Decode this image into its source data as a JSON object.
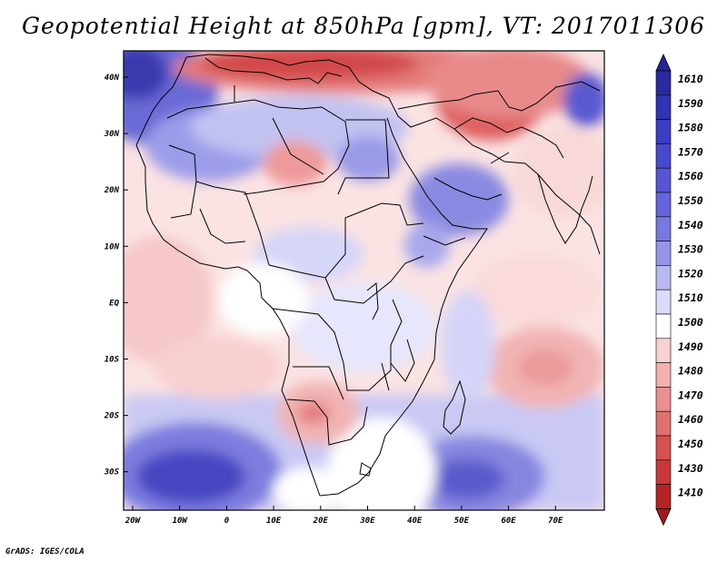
{
  "title": "Geopotential Height at 850hPa [gpm], VT: 2017011306",
  "credit": "GrADS: IGES/COLA",
  "lat_labels": [
    "40N",
    "30N",
    "20N",
    "10N",
    "EQ",
    "10S",
    "20S",
    "30S"
  ],
  "lon_labels": [
    "20W",
    "10W",
    "0",
    "10E",
    "20E",
    "30E",
    "40E",
    "50E",
    "60E",
    "70E"
  ],
  "colorbar": {
    "levels": [
      "1610",
      "1590",
      "1580",
      "1570",
      "1560",
      "1550",
      "1540",
      "1530",
      "1520",
      "1510",
      "1500",
      "1490",
      "1480",
      "1470",
      "1460",
      "1450",
      "1430",
      "1410"
    ],
    "colors": [
      "#2a2aa0",
      "#3232b4",
      "#3c3cc4",
      "#4848cc",
      "#5656d4",
      "#6464dc",
      "#7878e0",
      "#9696e8",
      "#b9b9f0",
      "#dcdcfa",
      "#ffffff",
      "#f8d2d2",
      "#f2b0b0",
      "#ea9090",
      "#e07070",
      "#d65050",
      "#c83838",
      "#b42424"
    ],
    "top_arrow_color": "#24249a",
    "bottom_arrow_color": "#a01c1c"
  }
}
